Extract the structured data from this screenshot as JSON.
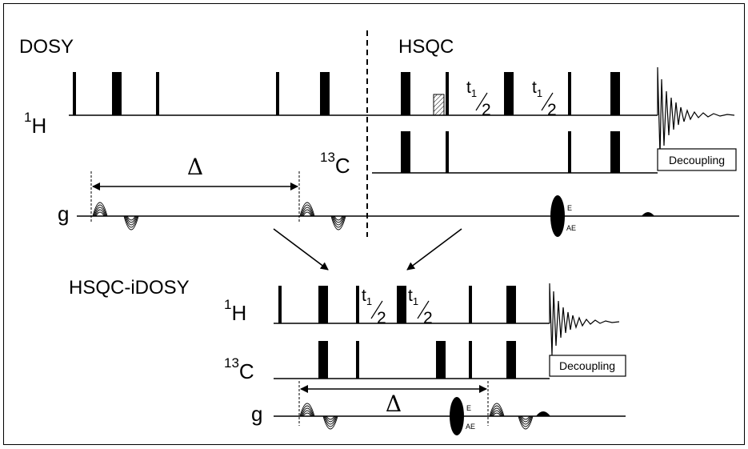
{
  "sections": {
    "dosy": "DOSY",
    "hsqc": "HSQC",
    "combined": "HSQC-iDOSY"
  },
  "channels": {
    "proton_mass": "1",
    "proton_symbol": "H",
    "carbon_mass": "13",
    "carbon_symbol": "C",
    "gradient": "g"
  },
  "evolution": {
    "t": "t",
    "sub": "1",
    "half_num": "1",
    "half_den": "2"
  },
  "diffusion_delay": "Δ",
  "decoupling_label": "Decoupling",
  "gradient_selection": {
    "echo": "E",
    "antiecho": "AE"
  }
}
